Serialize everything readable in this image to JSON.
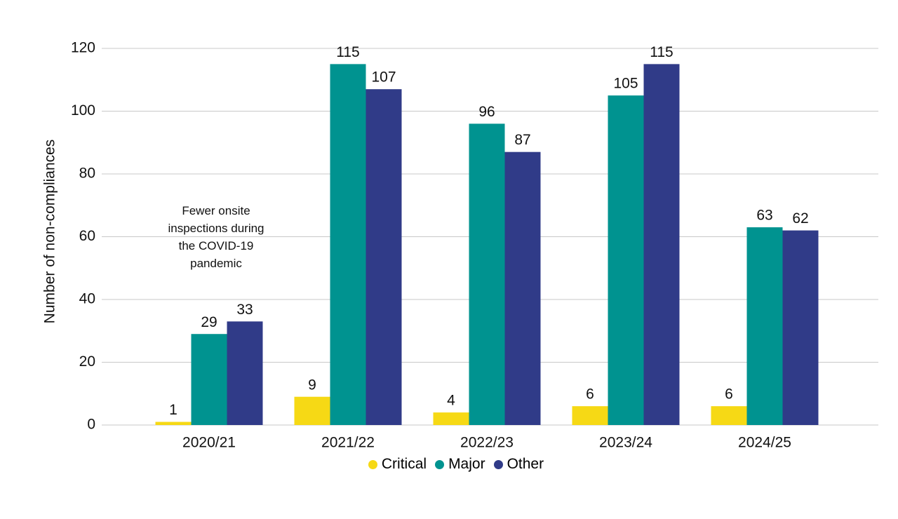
{
  "chart_data": {
    "type": "bar",
    "y_label": "Number of non-compliances",
    "categories": [
      "2020/21",
      "2021/22",
      "2022/23",
      "2023/24",
      "2024/25"
    ],
    "series": [
      {
        "name": "Critical",
        "color": "#f6d915",
        "values": [
          1,
          9,
          4,
          6,
          6
        ]
      },
      {
        "name": "Major",
        "color": "#009390",
        "values": [
          29,
          115,
          96,
          105,
          63
        ]
      },
      {
        "name": "Other",
        "color": "#303b88",
        "values": [
          33,
          107,
          87,
          115,
          62
        ]
      }
    ],
    "ylim": [
      0,
      120
    ],
    "yticks": [
      0,
      20,
      40,
      60,
      80,
      100,
      120
    ],
    "grid": true,
    "annotation": "Fewer onsite inspections during the COVID-19 pandemic"
  }
}
